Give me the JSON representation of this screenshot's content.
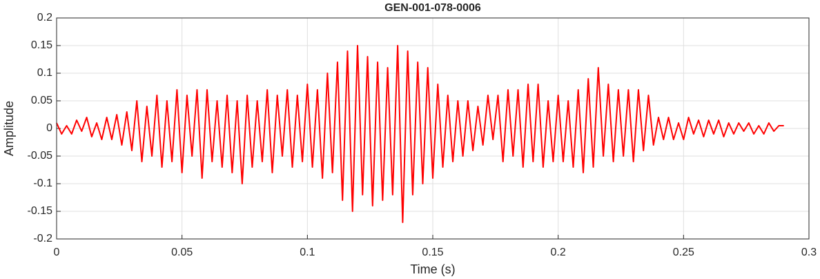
{
  "chart_data": {
    "type": "line",
    "title": "GEN-001-078-0006",
    "x_label": "Time (s)",
    "y_label": "Amplitude",
    "x": [
      0,
      0.002,
      0.004,
      0.006,
      0.008,
      0.01,
      0.012,
      0.014,
      0.016,
      0.018,
      0.02,
      0.022,
      0.024,
      0.026,
      0.028,
      0.03,
      0.032,
      0.034,
      0.036,
      0.038,
      0.04,
      0.042,
      0.044,
      0.046,
      0.048,
      0.05,
      0.052,
      0.054,
      0.056,
      0.058,
      0.06,
      0.062,
      0.064,
      0.066,
      0.068,
      0.07,
      0.072,
      0.074,
      0.076,
      0.078,
      0.08,
      0.082,
      0.084,
      0.086,
      0.088,
      0.09,
      0.092,
      0.094,
      0.096,
      0.098,
      0.1,
      0.102,
      0.104,
      0.106,
      0.108,
      0.11,
      0.112,
      0.114,
      0.116,
      0.118,
      0.12,
      0.122,
      0.124,
      0.126,
      0.128,
      0.13,
      0.132,
      0.134,
      0.136,
      0.138,
      0.14,
      0.142,
      0.144,
      0.146,
      0.148,
      0.15,
      0.152,
      0.154,
      0.156,
      0.158,
      0.16,
      0.162,
      0.164,
      0.166,
      0.168,
      0.17,
      0.172,
      0.174,
      0.176,
      0.178,
      0.18,
      0.182,
      0.184,
      0.186,
      0.188,
      0.19,
      0.192,
      0.194,
      0.196,
      0.198,
      0.2,
      0.202,
      0.204,
      0.206,
      0.208,
      0.21,
      0.212,
      0.214,
      0.216,
      0.218,
      0.22,
      0.222,
      0.224,
      0.226,
      0.228,
      0.23,
      0.232,
      0.234,
      0.236,
      0.238,
      0.24,
      0.242,
      0.244,
      0.246,
      0.248,
      0.25,
      0.252,
      0.254,
      0.256,
      0.258,
      0.26,
      0.262,
      0.264,
      0.266,
      0.268,
      0.27,
      0.272,
      0.274,
      0.276,
      0.278,
      0.28,
      0.282,
      0.284,
      0.286,
      0.288,
      0.29
    ],
    "series": [
      {
        "color": "#ff0000",
        "values": [
          0.01,
          -0.01,
          0.005,
          -0.01,
          0.015,
          -0.005,
          0.02,
          -0.015,
          0.01,
          -0.02,
          0.02,
          -0.02,
          0.025,
          -0.03,
          0.03,
          -0.04,
          0.05,
          -0.06,
          0.04,
          -0.05,
          0.06,
          -0.07,
          0.05,
          -0.06,
          0.07,
          -0.08,
          0.06,
          -0.05,
          0.07,
          -0.09,
          0.07,
          -0.06,
          0.05,
          -0.07,
          0.06,
          -0.08,
          0.05,
          -0.1,
          0.06,
          -0.07,
          0.05,
          -0.06,
          0.07,
          -0.08,
          0.06,
          -0.05,
          0.07,
          -0.07,
          0.06,
          -0.06,
          0.08,
          -0.07,
          0.07,
          -0.09,
          0.1,
          -0.08,
          0.12,
          -0.13,
          0.14,
          -0.15,
          0.15,
          -0.12,
          0.13,
          -0.14,
          0.12,
          -0.13,
          0.11,
          -0.12,
          0.15,
          -0.17,
          0.14,
          -0.12,
          0.12,
          -0.1,
          0.11,
          -0.09,
          0.08,
          -0.07,
          0.06,
          -0.06,
          0.05,
          -0.05,
          0.05,
          -0.04,
          0.04,
          -0.03,
          0.06,
          -0.02,
          0.06,
          -0.06,
          0.07,
          -0.05,
          0.07,
          -0.07,
          0.08,
          -0.06,
          0.08,
          -0.07,
          0.05,
          -0.06,
          0.06,
          -0.06,
          0.05,
          -0.07,
          0.07,
          -0.08,
          0.09,
          -0.07,
          0.11,
          -0.05,
          0.08,
          -0.06,
          0.07,
          -0.05,
          0.07,
          -0.06,
          0.07,
          -0.04,
          0.06,
          -0.03,
          0.02,
          -0.02,
          0.02,
          -0.02,
          0.01,
          -0.02,
          0.02,
          -0.01,
          0.015,
          -0.015,
          0.015,
          -0.01,
          0.015,
          -0.015,
          0.01,
          -0.01,
          0.01,
          -0.005,
          0.01,
          -0.01,
          0.005,
          -0.01,
          0.01,
          -0.005,
          0.005,
          0.005
        ]
      }
    ],
    "xlim": [
      0,
      0.3
    ],
    "xticks": [
      0,
      0.05,
      0.1,
      0.15,
      0.2,
      0.25,
      0.3
    ],
    "ylim": [
      -0.2,
      0.2
    ],
    "yticks": [
      -0.2,
      -0.15,
      -0.1,
      -0.05,
      0,
      0.05,
      0.1,
      0.15,
      0.2
    ],
    "grid": true
  }
}
